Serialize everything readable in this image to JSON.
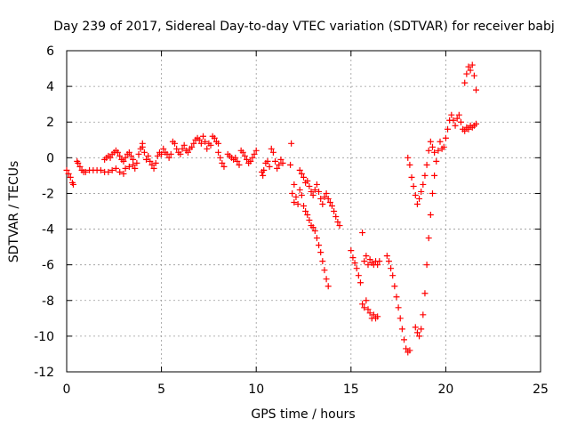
{
  "chart_data": {
    "type": "scatter",
    "title": "Day 239 of 2017, Sidereal Day-to-day VTEC variation (SDTVAR) for receiver babj",
    "xlabel": "GPS time / hours",
    "ylabel": "SDTVAR / TECUs",
    "xlim": [
      0,
      25
    ],
    "ylim": [
      -12,
      6
    ],
    "xticks": [
      0,
      5,
      10,
      15,
      20,
      25
    ],
    "yticks": [
      -12,
      -10,
      -8,
      -6,
      -4,
      -2,
      0,
      2,
      4,
      6
    ],
    "grid": true,
    "marker": "+",
    "color": "#ff0000",
    "series": [
      {
        "name": "SDTVAR",
        "points": [
          [
            0.0,
            -0.7
          ],
          [
            0.1,
            -0.9
          ],
          [
            0.2,
            -1.1
          ],
          [
            0.3,
            -1.4
          ],
          [
            0.35,
            -1.5
          ],
          [
            0.55,
            -0.2
          ],
          [
            0.6,
            -0.3
          ],
          [
            0.7,
            -0.5
          ],
          [
            0.8,
            -0.7
          ],
          [
            0.9,
            -0.8
          ],
          [
            1.0,
            -0.8
          ],
          [
            1.2,
            -0.7
          ],
          [
            1.4,
            -0.7
          ],
          [
            1.6,
            -0.7
          ],
          [
            1.8,
            -0.7
          ],
          [
            2.0,
            -0.8
          ],
          [
            2.2,
            -0.8
          ],
          [
            2.4,
            -0.7
          ],
          [
            2.6,
            -0.6
          ],
          [
            2.8,
            -0.8
          ],
          [
            3.0,
            -0.9
          ],
          [
            3.1,
            -0.6
          ],
          [
            3.3,
            -0.5
          ],
          [
            2.0,
            -0.1
          ],
          [
            2.1,
            0.0
          ],
          [
            2.2,
            0.1
          ],
          [
            2.3,
            0.0
          ],
          [
            2.4,
            0.2
          ],
          [
            2.5,
            0.3
          ],
          [
            2.6,
            0.4
          ],
          [
            2.7,
            0.3
          ],
          [
            2.8,
            0.1
          ],
          [
            2.9,
            -0.1
          ],
          [
            3.0,
            -0.2
          ],
          [
            3.1,
            0.0
          ],
          [
            3.2,
            0.2
          ],
          [
            3.3,
            0.3
          ],
          [
            3.4,
            0.1
          ],
          [
            3.5,
            -0.1
          ],
          [
            3.5,
            -0.4
          ],
          [
            3.6,
            -0.6
          ],
          [
            3.7,
            -0.3
          ],
          [
            3.8,
            0.2
          ],
          [
            3.9,
            0.5
          ],
          [
            4.0,
            0.8
          ],
          [
            4.0,
            0.6
          ],
          [
            4.1,
            0.3
          ],
          [
            4.2,
            -0.1
          ],
          [
            4.3,
            0.1
          ],
          [
            4.4,
            -0.2
          ],
          [
            4.5,
            -0.4
          ],
          [
            4.6,
            -0.6
          ],
          [
            4.7,
            -0.3
          ],
          [
            4.8,
            0.1
          ],
          [
            4.9,
            0.3
          ],
          [
            5.0,
            0.2
          ],
          [
            5.1,
            0.5
          ],
          [
            5.2,
            0.3
          ],
          [
            5.3,
            0.2
          ],
          [
            5.4,
            0.0
          ],
          [
            5.5,
            0.2
          ],
          [
            5.6,
            0.9
          ],
          [
            5.7,
            0.8
          ],
          [
            5.8,
            0.5
          ],
          [
            5.9,
            0.3
          ],
          [
            6.0,
            0.2
          ],
          [
            6.1,
            0.5
          ],
          [
            6.2,
            0.7
          ],
          [
            6.3,
            0.4
          ],
          [
            6.4,
            0.3
          ],
          [
            6.5,
            0.5
          ],
          [
            6.6,
            0.6
          ],
          [
            6.7,
            0.8
          ],
          [
            6.8,
            1.0
          ],
          [
            6.9,
            1.1
          ],
          [
            7.0,
            1.0
          ],
          [
            7.1,
            0.8
          ],
          [
            7.2,
            1.2
          ],
          [
            7.3,
            0.9
          ],
          [
            7.4,
            0.5
          ],
          [
            7.5,
            0.8
          ],
          [
            7.6,
            0.7
          ],
          [
            7.7,
            1.2
          ],
          [
            7.8,
            1.1
          ],
          [
            7.9,
            0.9
          ],
          [
            8.0,
            0.8
          ],
          [
            8.0,
            0.3
          ],
          [
            8.1,
            0.0
          ],
          [
            8.2,
            -0.3
          ],
          [
            8.3,
            -0.5
          ],
          [
            8.5,
            0.2
          ],
          [
            8.6,
            0.1
          ],
          [
            8.7,
            0.0
          ],
          [
            8.8,
            -0.1
          ],
          [
            8.9,
            0.0
          ],
          [
            9.0,
            -0.2
          ],
          [
            9.1,
            -0.4
          ],
          [
            9.2,
            0.4
          ],
          [
            9.3,
            0.3
          ],
          [
            9.4,
            0.1
          ],
          [
            9.5,
            -0.1
          ],
          [
            9.6,
            -0.3
          ],
          [
            9.7,
            -0.2
          ],
          [
            9.8,
            0.0
          ],
          [
            9.9,
            0.2
          ],
          [
            10.0,
            0.4
          ],
          [
            10.3,
            -0.8
          ],
          [
            10.35,
            -1.0
          ],
          [
            10.4,
            -0.7
          ],
          [
            10.5,
            -0.3
          ],
          [
            10.6,
            -0.2
          ],
          [
            10.7,
            -0.5
          ],
          [
            10.8,
            0.5
          ],
          [
            10.9,
            0.3
          ],
          [
            11.0,
            -0.2
          ],
          [
            11.1,
            -0.6
          ],
          [
            11.2,
            -0.4
          ],
          [
            11.3,
            -0.1
          ],
          [
            11.4,
            -0.3
          ],
          [
            11.8,
            -0.4
          ],
          [
            11.85,
            0.8
          ],
          [
            11.9,
            -2.0
          ],
          [
            12.0,
            -2.5
          ],
          [
            12.0,
            -1.5
          ],
          [
            12.1,
            -2.2
          ],
          [
            12.2,
            -2.6
          ],
          [
            12.3,
            -1.8
          ],
          [
            12.4,
            -2.1
          ],
          [
            12.5,
            -2.7
          ],
          [
            12.6,
            -3.0
          ],
          [
            12.7,
            -3.2
          ],
          [
            12.8,
            -3.5
          ],
          [
            12.9,
            -3.8
          ],
          [
            13.0,
            -3.9
          ],
          [
            13.1,
            -4.1
          ],
          [
            13.2,
            -4.5
          ],
          [
            13.3,
            -4.9
          ],
          [
            13.4,
            -5.3
          ],
          [
            13.5,
            -5.8
          ],
          [
            13.6,
            -6.3
          ],
          [
            13.7,
            -6.8
          ],
          [
            13.8,
            -7.2
          ],
          [
            12.3,
            -0.7
          ],
          [
            12.4,
            -0.9
          ],
          [
            12.5,
            -1.1
          ],
          [
            12.6,
            -1.4
          ],
          [
            12.7,
            -1.3
          ],
          [
            12.8,
            -1.6
          ],
          [
            12.9,
            -1.9
          ],
          [
            13.0,
            -2.1
          ],
          [
            13.1,
            -1.8
          ],
          [
            13.2,
            -1.5
          ],
          [
            13.3,
            -1.9
          ],
          [
            13.4,
            -2.3
          ],
          [
            13.5,
            -2.6
          ],
          [
            13.6,
            -2.2
          ],
          [
            13.7,
            -2.0
          ],
          [
            13.8,
            -2.3
          ],
          [
            13.9,
            -2.5
          ],
          [
            14.0,
            -2.7
          ],
          [
            14.1,
            -3.0
          ],
          [
            14.2,
            -3.3
          ],
          [
            14.3,
            -3.6
          ],
          [
            14.4,
            -3.8
          ],
          [
            15.0,
            -5.2
          ],
          [
            15.1,
            -5.6
          ],
          [
            15.2,
            -5.9
          ],
          [
            15.3,
            -6.2
          ],
          [
            15.4,
            -6.6
          ],
          [
            15.5,
            -7.0
          ],
          [
            15.6,
            -4.2
          ],
          [
            15.7,
            -5.8
          ],
          [
            15.8,
            -5.5
          ],
          [
            15.9,
            -6.0
          ],
          [
            15.6,
            -8.2
          ],
          [
            15.7,
            -8.4
          ],
          [
            15.8,
            -8.0
          ],
          [
            15.9,
            -8.5
          ],
          [
            16.0,
            -8.7
          ],
          [
            16.1,
            -9.0
          ],
          [
            16.2,
            -8.8
          ],
          [
            16.3,
            -9.0
          ],
          [
            16.4,
            -8.9
          ],
          [
            16.0,
            -5.7
          ],
          [
            16.1,
            -5.9
          ],
          [
            16.2,
            -6.0
          ],
          [
            16.3,
            -5.8
          ],
          [
            16.4,
            -6.0
          ],
          [
            16.5,
            -5.8
          ],
          [
            16.9,
            -5.5
          ],
          [
            17.0,
            -5.8
          ],
          [
            17.1,
            -6.2
          ],
          [
            17.2,
            -6.6
          ],
          [
            17.3,
            -7.2
          ],
          [
            17.4,
            -7.8
          ],
          [
            17.5,
            -8.4
          ],
          [
            17.6,
            -9.0
          ],
          [
            17.7,
            -9.6
          ],
          [
            17.8,
            -10.2
          ],
          [
            17.9,
            -10.7
          ],
          [
            18.0,
            -10.9
          ],
          [
            18.1,
            -10.8
          ],
          [
            18.0,
            0.0
          ],
          [
            18.1,
            -0.4
          ],
          [
            18.2,
            -1.1
          ],
          [
            18.3,
            -1.6
          ],
          [
            18.4,
            -2.1
          ],
          [
            18.5,
            -2.6
          ],
          [
            18.6,
            -2.3
          ],
          [
            18.7,
            -1.9
          ],
          [
            18.8,
            -1.5
          ],
          [
            18.9,
            -1.0
          ],
          [
            19.0,
            -0.4
          ],
          [
            19.1,
            0.4
          ],
          [
            19.2,
            0.9
          ],
          [
            19.3,
            0.6
          ],
          [
            19.4,
            0.3
          ],
          [
            18.4,
            -9.5
          ],
          [
            18.5,
            -9.8
          ],
          [
            18.6,
            -10.0
          ],
          [
            18.7,
            -9.6
          ],
          [
            18.8,
            -8.8
          ],
          [
            18.9,
            -7.6
          ],
          [
            19.0,
            -6.0
          ],
          [
            19.1,
            -4.5
          ],
          [
            19.2,
            -3.2
          ],
          [
            19.3,
            -2.0
          ],
          [
            19.4,
            -1.0
          ],
          [
            19.5,
            -0.2
          ],
          [
            19.6,
            0.4
          ],
          [
            19.7,
            0.9
          ],
          [
            19.8,
            0.5
          ],
          [
            19.9,
            0.6
          ],
          [
            20.0,
            1.1
          ],
          [
            20.1,
            1.6
          ],
          [
            20.2,
            2.1
          ],
          [
            20.3,
            2.4
          ],
          [
            20.4,
            2.1
          ],
          [
            20.5,
            1.8
          ],
          [
            20.6,
            2.2
          ],
          [
            20.7,
            2.4
          ],
          [
            20.8,
            2.0
          ],
          [
            20.9,
            1.6
          ],
          [
            21.0,
            4.2
          ],
          [
            21.1,
            4.7
          ],
          [
            21.2,
            5.1
          ],
          [
            21.3,
            4.9
          ],
          [
            21.4,
            5.2
          ],
          [
            21.5,
            4.6
          ],
          [
            21.6,
            3.8
          ],
          [
            21.0,
            1.5
          ],
          [
            21.1,
            1.7
          ],
          [
            21.2,
            1.6
          ],
          [
            21.3,
            1.8
          ],
          [
            21.4,
            1.7
          ],
          [
            21.5,
            1.8
          ],
          [
            21.6,
            1.9
          ]
        ]
      }
    ]
  }
}
